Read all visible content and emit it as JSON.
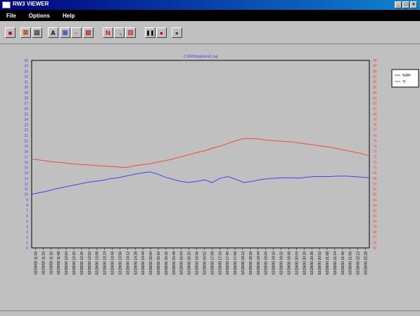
{
  "window": {
    "title": "RW3 VIEWER",
    "controls": [
      "_",
      "□",
      "×"
    ]
  },
  "menu": {
    "items": [
      "File",
      "Options",
      "Help"
    ]
  },
  "toolbar": {
    "buttons": [
      {
        "name": "exit-button",
        "icon": "exit-icon",
        "glyph": "■",
        "color": "#c00000"
      },
      {
        "name": "open-button",
        "icon": "open-icon",
        "glyph": "⊠",
        "color": "#c04000"
      },
      {
        "name": "print-button",
        "icon": "print-icon",
        "glyph": "▤",
        "color": "#404040"
      },
      {
        "name": "text-button",
        "icon": "text-icon",
        "glyph": "A",
        "color": "#000000"
      },
      {
        "name": "copy-button",
        "icon": "copy-icon",
        "glyph": "▣",
        "color": "#4060c0"
      },
      {
        "name": "scale-button",
        "icon": "scale-icon",
        "glyph": "⌐",
        "color": "#c04040"
      },
      {
        "name": "grid-button",
        "icon": "grid-icon",
        "glyph": "▦",
        "color": "#c04040"
      },
      {
        "name": "nav-button",
        "icon": "n-icon",
        "glyph": "N",
        "color": "#e00000"
      },
      {
        "name": "zoom-button",
        "icon": "zoom-icon",
        "glyph": "🔍",
        "color": "#404040"
      },
      {
        "name": "chart-button",
        "icon": "chart-icon",
        "glyph": "▥",
        "color": "#c04040"
      },
      {
        "name": "pause-button",
        "icon": "pause-icon",
        "glyph": "❚❚",
        "color": "#000000"
      },
      {
        "name": "stop-button",
        "icon": "stop-icon",
        "glyph": "●",
        "color": "#e00000"
      },
      {
        "name": "go-button",
        "icon": "go-icon",
        "glyph": "●",
        "color": "#008000"
      }
    ]
  },
  "chart_data": {
    "type": "line",
    "title": "C:\\RW3\\data\\test1.log",
    "left_axis": {
      "ylim": [
        0,
        35
      ],
      "ticks": [
        0,
        1,
        2,
        3,
        4,
        5,
        6,
        7,
        8,
        9,
        10,
        11,
        12,
        13,
        14,
        15,
        16,
        17,
        18,
        19,
        20,
        21,
        22,
        23,
        24,
        25,
        26,
        27,
        28,
        29,
        30,
        31,
        32,
        33,
        34,
        35
      ],
      "color": "#4040ff"
    },
    "right_axis": {
      "ylim": [
        55,
        90
      ],
      "ticks": [
        55,
        56,
        57,
        58,
        59,
        60,
        61,
        62,
        63,
        64,
        65,
        66,
        67,
        68,
        69,
        70,
        71,
        72,
        73,
        74,
        75,
        76,
        77,
        78,
        79,
        80,
        81,
        82,
        83,
        84,
        85,
        86,
        87,
        88,
        89,
        90
      ],
      "color": "#ff4040"
    },
    "x_labels": [
      "02/28/00 11:00",
      "02/28/00 11:16",
      "02/28/00 11:32",
      "02/28/00 11:48",
      "02/28/00 12:04",
      "02/28/00 12:20",
      "02/28/00 12:36",
      "02/28/00 12:52",
      "02/28/00 13:08",
      "02/28/00 13:24",
      "02/28/00 13:40",
      "02/28/00 13:56",
      "02/28/00 14:12",
      "02/28/00 14:28",
      "02/28/00 14:44",
      "02/28/00 15:00",
      "02/28/00 15:16",
      "02/28/00 15:32",
      "02/28/00 15:48",
      "02/28/00 16:04",
      "02/28/00 16:20",
      "02/28/00 16:36",
      "02/28/00 16:52",
      "02/28/00 17:08",
      "02/28/00 17:24",
      "02/28/00 17:40",
      "02/28/00 17:56",
      "02/28/00 18:12",
      "02/28/00 18:28",
      "02/28/00 18:44",
      "02/28/00 19:00",
      "02/28/00 19:16",
      "02/28/00 19:32",
      "02/28/00 19:48",
      "02/28/00 20:04",
      "02/28/00 20:20",
      "02/28/00 20:36",
      "02/28/00 20:52",
      "02/28/00 21:08",
      "02/28/00 21:24",
      "02/28/00 21:40",
      "02/28/00 21:56",
      "02/28/00 22:12",
      "02/28/00 22:28"
    ],
    "series": [
      {
        "name": "%RH",
        "axis": "left",
        "color": "#4040ff",
        "values": [
          10.0,
          10.3,
          10.6,
          11.0,
          11.3,
          11.6,
          11.9,
          12.2,
          12.4,
          12.6,
          12.9,
          13.1,
          13.4,
          13.7,
          14.0,
          14.2,
          13.8,
          13.2,
          12.8,
          12.4,
          12.2,
          12.4,
          12.7,
          12.2,
          13.0,
          13.3,
          12.8,
          12.2,
          12.4,
          12.7,
          12.9,
          13.0,
          13.1,
          13.1,
          13.0,
          13.2,
          13.3,
          13.3,
          13.3,
          13.4,
          13.4,
          13.3,
          13.2,
          13.1
        ]
      },
      {
        "name": "°F",
        "axis": "right",
        "color": "#ff4040",
        "values": [
          71.6,
          71.4,
          71.2,
          71.0,
          70.9,
          70.7,
          70.6,
          70.5,
          70.4,
          70.3,
          70.2,
          70.1,
          70.0,
          70.3,
          70.5,
          70.7,
          71.0,
          71.3,
          71.6,
          72.0,
          72.4,
          72.8,
          73.1,
          73.6,
          74.0,
          74.5,
          75.0,
          75.4,
          75.4,
          75.3,
          75.1,
          75.0,
          74.9,
          74.8,
          74.6,
          74.4,
          74.2,
          74.0,
          73.8,
          73.5,
          73.2,
          72.9,
          72.6,
          72.2
        ]
      }
    ],
    "legend": {
      "placement": "right",
      "entries": [
        "%RH",
        "°F"
      ]
    }
  }
}
